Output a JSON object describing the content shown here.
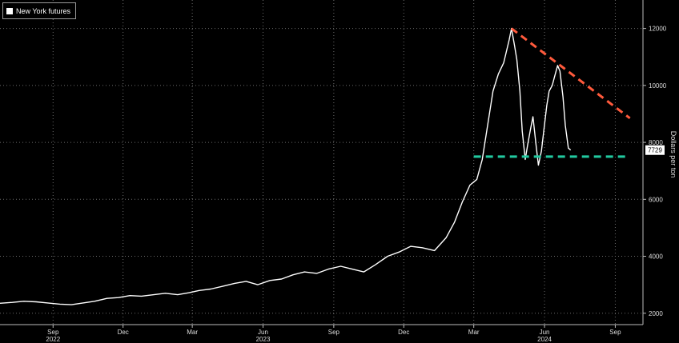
{
  "legend": {
    "label": "New York futures"
  },
  "colors": {
    "background": "#000000",
    "series": "#ffffff",
    "resistance": "#ff5a3c",
    "support": "#22c9a0",
    "grid": "#6b6b6b"
  },
  "chart_data": {
    "type": "line",
    "ylabel": "Dollars per ton",
    "ylim": [
      1600,
      13000
    ],
    "y_ticks": [
      2000,
      4000,
      6000,
      8000,
      10000,
      12000
    ],
    "y_tick_labels": [
      "2000",
      "4000",
      "6000",
      "8000",
      "10000",
      "12000"
    ],
    "y_axis_position": "right",
    "grid": true,
    "legend_position": "top-left",
    "x_range": [
      "2022-06-24",
      "2024-10-07"
    ],
    "x_ticks": [
      {
        "date": "2022-09-01",
        "label": "Sep",
        "year": "2022"
      },
      {
        "date": "2022-12-01",
        "label": "Dec"
      },
      {
        "date": "2023-03-01",
        "label": "Mar"
      },
      {
        "date": "2023-06-01",
        "label": "Jun",
        "year": "2023"
      },
      {
        "date": "2023-09-01",
        "label": "Sep"
      },
      {
        "date": "2023-12-01",
        "label": "Dec"
      },
      {
        "date": "2024-03-01",
        "label": "Mar"
      },
      {
        "date": "2024-06-01",
        "label": "Jun",
        "year": "2024"
      },
      {
        "date": "2024-09-01",
        "label": "Sep"
      }
    ],
    "series": [
      {
        "points": [
          [
            "2022-06-24",
            2350
          ],
          [
            "2022-07-10",
            2380
          ],
          [
            "2022-07-25",
            2420
          ],
          [
            "2022-08-10",
            2400
          ],
          [
            "2022-08-25",
            2360
          ],
          [
            "2022-09-10",
            2320
          ],
          [
            "2022-09-25",
            2300
          ],
          [
            "2022-10-10",
            2360
          ],
          [
            "2022-10-25",
            2420
          ],
          [
            "2022-11-10",
            2520
          ],
          [
            "2022-11-25",
            2550
          ],
          [
            "2022-12-10",
            2620
          ],
          [
            "2022-12-25",
            2600
          ],
          [
            "2023-01-10",
            2650
          ],
          [
            "2023-01-25",
            2700
          ],
          [
            "2023-02-10",
            2650
          ],
          [
            "2023-02-25",
            2720
          ],
          [
            "2023-03-10",
            2800
          ],
          [
            "2023-03-25",
            2850
          ],
          [
            "2023-04-10",
            2950
          ],
          [
            "2023-04-25",
            3050
          ],
          [
            "2023-05-10",
            3120
          ],
          [
            "2023-05-25",
            3000
          ],
          [
            "2023-06-10",
            3150
          ],
          [
            "2023-06-25",
            3200
          ],
          [
            "2023-07-10",
            3350
          ],
          [
            "2023-07-25",
            3450
          ],
          [
            "2023-08-10",
            3400
          ],
          [
            "2023-08-25",
            3550
          ],
          [
            "2023-09-10",
            3650
          ],
          [
            "2023-09-25",
            3550
          ],
          [
            "2023-10-10",
            3450
          ],
          [
            "2023-10-25",
            3700
          ],
          [
            "2023-11-10",
            4000
          ],
          [
            "2023-11-25",
            4150
          ],
          [
            "2023-12-10",
            4350
          ],
          [
            "2023-12-25",
            4300
          ],
          [
            "2024-01-10",
            4200
          ],
          [
            "2024-01-25",
            4650
          ],
          [
            "2024-02-05",
            5200
          ],
          [
            "2024-02-15",
            5900
          ],
          [
            "2024-02-25",
            6500
          ],
          [
            "2024-03-05",
            6700
          ],
          [
            "2024-03-12",
            7400
          ],
          [
            "2024-03-19",
            8600
          ],
          [
            "2024-03-26",
            9800
          ],
          [
            "2024-04-02",
            10400
          ],
          [
            "2024-04-09",
            10800
          ],
          [
            "2024-04-16",
            11600
          ],
          [
            "2024-04-19",
            12000
          ],
          [
            "2024-04-23",
            11400
          ],
          [
            "2024-04-26",
            10900
          ],
          [
            "2024-04-30",
            9800
          ],
          [
            "2024-05-03",
            8400
          ],
          [
            "2024-05-07",
            7400
          ],
          [
            "2024-05-10",
            7900
          ],
          [
            "2024-05-14",
            8500
          ],
          [
            "2024-05-17",
            8900
          ],
          [
            "2024-05-21",
            7900
          ],
          [
            "2024-05-24",
            7200
          ],
          [
            "2024-05-28",
            7700
          ],
          [
            "2024-05-31",
            8400
          ],
          [
            "2024-06-04",
            9300
          ],
          [
            "2024-06-07",
            9800
          ],
          [
            "2024-06-11",
            10000
          ],
          [
            "2024-06-14",
            10300
          ],
          [
            "2024-06-18",
            10700
          ],
          [
            "2024-06-21",
            10500
          ],
          [
            "2024-06-25",
            9600
          ],
          [
            "2024-06-28",
            8600
          ],
          [
            "2024-07-02",
            7800
          ],
          [
            "2024-07-05",
            7729
          ]
        ]
      }
    ],
    "last_value_label": "7729",
    "annotations": [
      {
        "type": "trendline",
        "style": "dashed",
        "color": "#ff5a3c",
        "from": [
          "2024-04-19",
          12000
        ],
        "to": [
          "2024-09-20",
          8850
        ]
      },
      {
        "type": "hline",
        "style": "dashed",
        "color": "#22c9a0",
        "from": [
          "2024-03-01",
          7500
        ],
        "to": [
          "2024-09-15",
          7500
        ]
      }
    ]
  }
}
